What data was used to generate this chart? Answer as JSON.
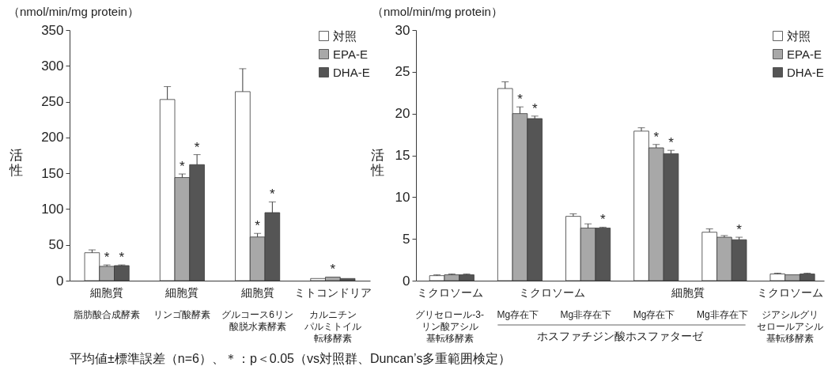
{
  "chart_data": [
    {
      "type": "bar",
      "ylabel": "活性",
      "annotations": [
        "（nmol/min/mg protein）",
        "細胞質",
        "細胞質",
        "細胞質",
        "ミトコンドリア"
      ],
      "categories": [
        "脂肪酸合成酵素",
        "リンゴ酸酵素",
        "グルコース6リン酸脱水素酵素",
        "カルニチンパルミトイル転移酵素"
      ],
      "series": [
        {
          "name": "対照",
          "color": "#ffffff",
          "values": [
            39,
            253,
            264,
            3
          ],
          "errors": [
            [
              39,
              43
            ],
            [
              253,
              271
            ],
            [
              264,
              296
            ],
            null
          ]
        },
        {
          "name": "EPA-E",
          "color": "#a8a8a8",
          "values": [
            20,
            144,
            61,
            5
          ],
          "errors": [
            [
              20,
              22
            ],
            [
              144,
              149
            ],
            [
              61,
              66
            ],
            null
          ],
          "value_labels": [
            "*",
            "*",
            "*",
            "*"
          ]
        },
        {
          "name": "DHA-E",
          "color": "#555555",
          "values": [
            21,
            162,
            95,
            3
          ],
          "errors": [
            [
              21,
              22
            ],
            [
              162,
              176
            ],
            [
              95,
              110
            ],
            null
          ],
          "value_labels": [
            "*",
            "*",
            "*",
            null
          ]
        }
      ],
      "ylim": [
        0,
        350
      ],
      "yticks": [
        0,
        50,
        100,
        150,
        200,
        250,
        300,
        350
      ],
      "legend": "top right"
    },
    {
      "type": "bar",
      "ylabel": "活性",
      "annotations": [
        "（nmol/min/mg protein）",
        "ミクロソーム",
        "ミクロソーム",
        "細胞質",
        "ミクロソーム",
        "ホスファチジン酸ホスファターゼ"
      ],
      "categories": [
        "グリセロール-3-リン酸アシル基転移酵素",
        "Mg存在下",
        "Mg非存在下",
        "Mg存在下",
        "Mg非存在下",
        "ジアシルグリセロールアシル基転移酵素"
      ],
      "series": [
        {
          "name": "対照",
          "color": "#ffffff",
          "values": [
            0.6,
            23,
            7.7,
            17.9,
            5.8,
            0.8
          ],
          "errors": [
            [
              0.6,
              0.7
            ],
            [
              23,
              23.8
            ],
            [
              7.7,
              8
            ],
            [
              17.9,
              18.3
            ],
            [
              5.8,
              6.2
            ],
            [
              0.8,
              0.9
            ]
          ]
        },
        {
          "name": "EPA-E",
          "color": "#a8a8a8",
          "values": [
            0.7,
            20,
            6.3,
            15.9,
            5.2,
            0.7
          ],
          "errors": [
            [
              0.7,
              0.8
            ],
            [
              20,
              20.8
            ],
            [
              6.3,
              6.8
            ],
            [
              15.9,
              16.3
            ],
            [
              5.2,
              5.4
            ],
            null
          ],
          "value_labels": [
            null,
            "*",
            null,
            "*",
            null,
            null
          ]
        },
        {
          "name": "DHA-E",
          "color": "#555555",
          "values": [
            0.7,
            19.4,
            6.3,
            15.2,
            4.9,
            0.8
          ],
          "errors": [
            [
              0.7,
              0.8
            ],
            [
              19.4,
              19.7
            ],
            [
              6.3,
              6.4
            ],
            [
              15.2,
              15.6
            ],
            [
              4.9,
              5.2
            ],
            [
              0.8,
              0.9
            ]
          ],
          "value_labels": [
            null,
            "*",
            "*",
            "*",
            "*",
            null
          ]
        }
      ],
      "ylim": [
        0,
        30
      ],
      "yticks": [
        0,
        5,
        10,
        15,
        20,
        25,
        30
      ],
      "legend": "top right"
    },
    {
      "type": "other",
      "annotations": [
        "平均値±標準誤差（n=6）、＊：p＜0.05（vs対照群、Duncan’s多重範囲検定）"
      ]
    }
  ]
}
